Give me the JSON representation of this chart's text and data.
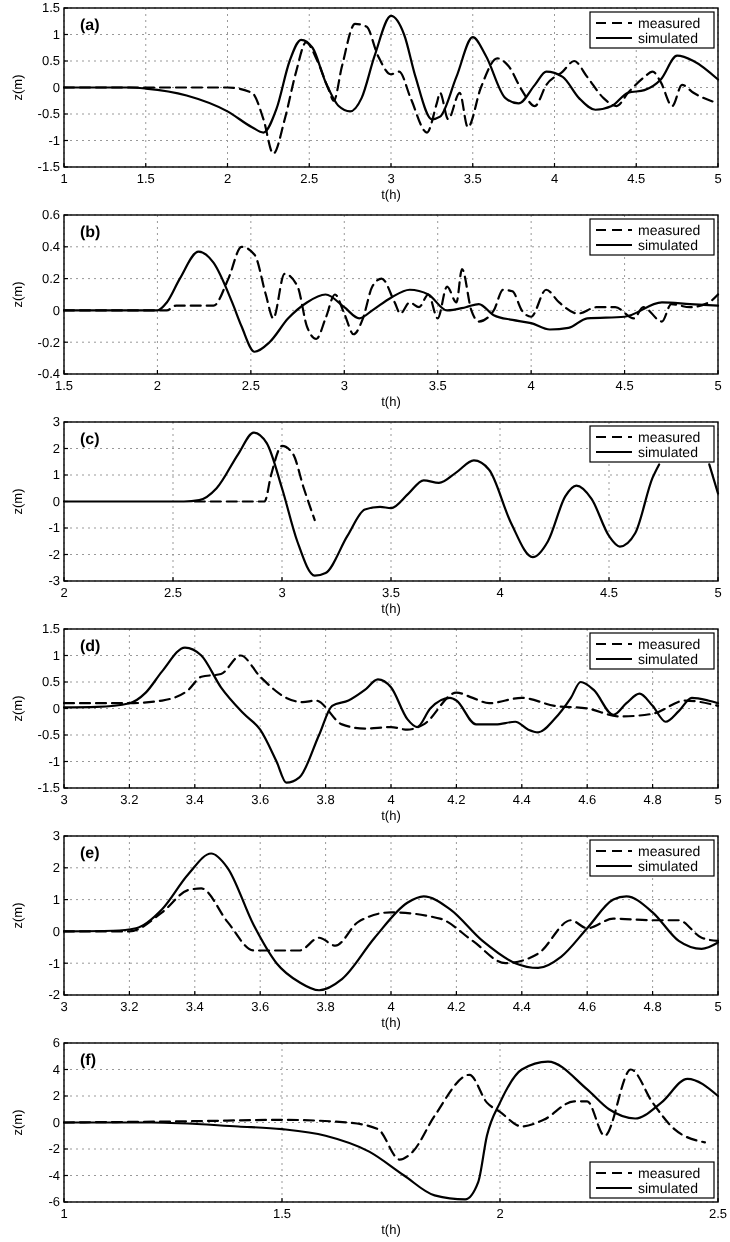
{
  "chart_data": [
    {
      "type": "line",
      "xlabel": "t(h)",
      "ylabel": "z(m)",
      "annotations": [
        "(a)"
      ],
      "xlim": [
        1,
        5
      ],
      "xticks": [
        1,
        1.5,
        2,
        2.5,
        3,
        3.5,
        4,
        4.5,
        5
      ],
      "ylim": [
        -1.5,
        1.5
      ],
      "yticks": [
        -1.5,
        -1,
        -0.5,
        0,
        0.5,
        1,
        1.5
      ],
      "grid": true,
      "legend": "top right",
      "series": [
        {
          "name": "measured",
          "color": "#000000",
          "line_style": "dashed",
          "x": [
            1,
            1.5,
            2,
            2.15,
            2.22,
            2.28,
            2.35,
            2.42,
            2.48,
            2.55,
            2.62,
            2.65,
            2.7,
            2.78,
            2.85,
            2.92,
            3,
            3.05,
            3.12,
            3.22,
            3.28,
            3.3,
            3.35,
            3.42,
            3.47,
            3.55,
            3.65,
            3.72,
            3.8,
            3.88,
            3.95,
            4.05,
            4.12,
            4.2,
            4.3,
            4.38,
            4.45,
            4.55,
            4.6,
            4.65,
            4.72,
            4.78,
            4.85,
            5
          ],
          "values": [
            0,
            0,
            0,
            -0.1,
            -0.6,
            -1.25,
            -0.6,
            0.3,
            0.85,
            0.5,
            -0.05,
            -0.25,
            0.4,
            1.2,
            1.15,
            0.6,
            0.25,
            0.3,
            -0.2,
            -0.85,
            -0.3,
            -0.1,
            -0.6,
            -0.1,
            -0.75,
            0,
            0.55,
            0.4,
            -0.05,
            -0.35,
            0.05,
            0.3,
            0.5,
            0.2,
            -0.2,
            -0.35,
            -0.1,
            0.2,
            0.3,
            0.1,
            -0.35,
            0.05,
            -0.1,
            -0.3
          ]
        },
        {
          "name": "simulated",
          "color": "#000000",
          "line_style": "solid",
          "x": [
            1,
            1.4,
            1.5,
            1.75,
            2,
            2.15,
            2.22,
            2.3,
            2.38,
            2.45,
            2.52,
            2.6,
            2.68,
            2.75,
            2.82,
            2.9,
            3,
            3.08,
            3.15,
            3.25,
            3.3,
            3.4,
            3.5,
            3.58,
            3.7,
            3.78,
            3.88,
            3.95,
            4.05,
            4.15,
            4.25,
            4.35,
            4.45,
            4.55,
            4.65,
            4.75,
            4.85,
            5
          ],
          "values": [
            0,
            0,
            -0.02,
            -0.15,
            -0.45,
            -0.75,
            -0.85,
            -0.4,
            0.5,
            0.9,
            0.75,
            0.1,
            -0.35,
            -0.45,
            -0.2,
            0.6,
            1.35,
            1,
            0.2,
            -0.6,
            -0.55,
            0.2,
            0.95,
            0.6,
            -0.2,
            -0.3,
            0.05,
            0.3,
            0.2,
            -0.2,
            -0.42,
            -0.35,
            -0.1,
            -0.05,
            0.15,
            0.6,
            0.5,
            0.15
          ]
        }
      ]
    },
    {
      "type": "line",
      "xlabel": "t(h)",
      "ylabel": "z(m)",
      "annotations": [
        "(b)"
      ],
      "xlim": [
        1.5,
        5
      ],
      "xticks": [
        1.5,
        2,
        2.5,
        3,
        3.5,
        4,
        4.5,
        5
      ],
      "ylim": [
        -0.4,
        0.6
      ],
      "yticks": [
        -0.4,
        -0.2,
        0,
        0.2,
        0.4,
        0.6
      ],
      "grid": true,
      "legend": "top right",
      "series": [
        {
          "name": "measured",
          "color": "#000000",
          "line_style": "dashed",
          "x": [
            1.5,
            2.05,
            2.1,
            2.3,
            2.38,
            2.45,
            2.52,
            2.58,
            2.62,
            2.68,
            2.75,
            2.8,
            2.85,
            2.9,
            2.95,
            3,
            3.05,
            3.1,
            3.15,
            3.2,
            3.27,
            3.3,
            3.35,
            3.4,
            3.45,
            3.5,
            3.55,
            3.6,
            3.63,
            3.68,
            3.72,
            3.8,
            3.85,
            3.9,
            3.95,
            4,
            4.08,
            4.15,
            4.25,
            4.35,
            4.45,
            4.55,
            4.6,
            4.7,
            4.75,
            4.85,
            4.95,
            5
          ],
          "values": [
            0,
            0,
            0.03,
            0.03,
            0.2,
            0.4,
            0.35,
            0.1,
            -0.05,
            0.23,
            0.15,
            -0.1,
            -0.18,
            -0.05,
            0.1,
            -0.02,
            -0.15,
            -0.05,
            0.15,
            0.2,
            0.05,
            -0.02,
            0.05,
            0.02,
            0.1,
            -0.05,
            0.15,
            0.05,
            0.26,
            0,
            -0.07,
            0,
            0.13,
            0.12,
            0,
            -0.04,
            0.13,
            0.05,
            -0.02,
            0.02,
            0.02,
            -0.05,
            0.02,
            -0.07,
            0.04,
            0.02,
            0.05,
            0.1
          ]
        },
        {
          "name": "simulated",
          "color": "#000000",
          "line_style": "solid",
          "x": [
            1.5,
            2,
            2.05,
            2.12,
            2.22,
            2.3,
            2.4,
            2.45,
            2.52,
            2.6,
            2.7,
            2.8,
            2.9,
            3,
            3.08,
            3.15,
            3.25,
            3.35,
            3.45,
            3.55,
            3.65,
            3.72,
            3.8,
            3.9,
            4,
            4.1,
            4.2,
            4.3,
            4.5,
            4.7,
            4.85,
            5
          ],
          "values": [
            0,
            0,
            0.05,
            0.2,
            0.37,
            0.3,
            0.05,
            -0.1,
            -0.26,
            -0.2,
            -0.05,
            0.05,
            0.1,
            0.02,
            -0.05,
            0,
            0.08,
            0.13,
            0.1,
            0,
            0.02,
            0.04,
            -0.03,
            -0.06,
            -0.08,
            -0.12,
            -0.11,
            -0.05,
            -0.04,
            0.05,
            0.04,
            0.03
          ]
        }
      ]
    },
    {
      "type": "line",
      "xlabel": "t(h)",
      "ylabel": "z(m)",
      "annotations": [
        "(c)"
      ],
      "xlim": [
        2,
        5
      ],
      "xticks": [
        2,
        2.5,
        3,
        3.5,
        4,
        4.5,
        5
      ],
      "ylim": [
        -3,
        3
      ],
      "yticks": [
        -3,
        -2,
        -1,
        0,
        1,
        2,
        3
      ],
      "grid": true,
      "legend": "top right",
      "series": [
        {
          "name": "measured",
          "color": "#000000",
          "line_style": "dashed",
          "x": [
            2.6,
            2.92,
            2.95,
            3,
            3.05,
            3.1,
            3.15
          ],
          "values": [
            0,
            0,
            1,
            2.1,
            1.8,
            0.5,
            -0.7
          ]
        },
        {
          "name": "simulated",
          "color": "#000000",
          "line_style": "solid",
          "x": [
            2,
            2.55,
            2.62,
            2.7,
            2.8,
            2.87,
            2.93,
            3,
            3.07,
            3.15,
            3.2,
            3.3,
            3.38,
            3.45,
            3.5,
            3.58,
            3.65,
            3.72,
            3.8,
            3.88,
            3.95,
            4.05,
            4.15,
            4.22,
            4.3,
            4.35,
            4.42,
            4.5,
            4.55,
            4.62,
            4.7,
            4.73,
            4.85,
            4.96,
            5
          ],
          "values": [
            0,
            0,
            0.05,
            0.5,
            1.8,
            2.6,
            2.2,
            0.5,
            -1.5,
            -2.8,
            -2.7,
            -1.3,
            -0.3,
            -0.2,
            -0.25,
            0.3,
            0.8,
            0.7,
            1.1,
            1.55,
            1.2,
            -0.8,
            -2.1,
            -1.5,
            0.2,
            0.6,
            0.1,
            -1.3,
            -1.7,
            -1.2,
            0.9,
            1.4,
            null,
            1.4,
            0.3
          ]
        }
      ]
    },
    {
      "type": "line",
      "xlabel": "t(h)",
      "ylabel": "z(m)",
      "annotations": [
        "(d)"
      ],
      "xlim": [
        3,
        5
      ],
      "xticks": [
        3,
        3.2,
        3.4,
        3.6,
        3.8,
        4,
        4.2,
        4.4,
        4.6,
        4.8,
        5
      ],
      "ylim": [
        -1.5,
        1.5
      ],
      "yticks": [
        -1.5,
        -1,
        -0.5,
        0,
        0.5,
        1,
        1.5
      ],
      "grid": true,
      "legend": "top right",
      "series": [
        {
          "name": "measured",
          "color": "#000000",
          "line_style": "dashed",
          "x": [
            3,
            3.2,
            3.3,
            3.38,
            3.42,
            3.48,
            3.54,
            3.6,
            3.68,
            3.73,
            3.77,
            3.85,
            3.92,
            4,
            4.05,
            4.1,
            4.2,
            4.25,
            4.3,
            4.4,
            4.5,
            4.6,
            4.7,
            4.8,
            4.9,
            5
          ],
          "values": [
            0.1,
            0.1,
            0.15,
            0.35,
            0.6,
            0.65,
            1,
            0.6,
            0.2,
            0.12,
            0.15,
            -0.3,
            -0.38,
            -0.35,
            -0.4,
            -0.3,
            0.3,
            0.2,
            0.1,
            0.2,
            0.05,
            0,
            -0.15,
            -0.1,
            0.15,
            0.05
          ]
        },
        {
          "name": "simulated",
          "color": "#000000",
          "line_style": "solid",
          "x": [
            3,
            3.1,
            3.2,
            3.25,
            3.3,
            3.37,
            3.42,
            3.48,
            3.55,
            3.6,
            3.65,
            3.68,
            3.72,
            3.78,
            3.82,
            3.87,
            3.92,
            3.96,
            4,
            4.05,
            4.08,
            4.12,
            4.18,
            4.2,
            4.26,
            4.32,
            4.38,
            4.42,
            4.45,
            4.5,
            4.55,
            4.58,
            4.62,
            4.68,
            4.72,
            4.76,
            4.8,
            4.84,
            4.88,
            4.92,
            4.97,
            5
          ],
          "values": [
            0.02,
            0.03,
            0.1,
            0.3,
            0.7,
            1.15,
            1,
            0.4,
            -0.1,
            -0.4,
            -1,
            -1.4,
            -1.3,
            -0.5,
            0.05,
            0.15,
            0.35,
            0.55,
            0.4,
            -0.2,
            -0.35,
            0,
            0.2,
            0.15,
            -0.3,
            -0.3,
            -0.25,
            -0.4,
            -0.45,
            -0.2,
            0.2,
            0.5,
            0.35,
            -0.12,
            0.1,
            0.28,
            0.05,
            -0.25,
            -0.05,
            0.2,
            0.15,
            0.1
          ]
        }
      ]
    },
    {
      "type": "line",
      "xlabel": "t(h)",
      "ylabel": "z(m)",
      "annotations": [
        "(e)"
      ],
      "xlim": [
        3,
        5
      ],
      "xticks": [
        3,
        3.2,
        3.4,
        3.6,
        3.8,
        4,
        4.2,
        4.4,
        4.6,
        4.8,
        5
      ],
      "ylim": [
        -2,
        3
      ],
      "yticks": [
        -2,
        -1,
        0,
        1,
        2,
        3
      ],
      "grid": true,
      "legend": "top right",
      "series": [
        {
          "name": "measured",
          "color": "#000000",
          "line_style": "dashed",
          "x": [
            3,
            3.2,
            3.3,
            3.38,
            3.42,
            3.5,
            3.58,
            3.65,
            3.72,
            3.78,
            3.83,
            3.9,
            4,
            4.15,
            4.25,
            4.35,
            4.45,
            4.55,
            4.6,
            4.68,
            4.8,
            4.88,
            4.95,
            5
          ],
          "values": [
            0,
            0,
            0.6,
            1.3,
            1.35,
            0.3,
            -0.6,
            -0.6,
            -0.6,
            -0.2,
            -0.45,
            0.3,
            0.6,
            0.4,
            -0.3,
            -1,
            -0.7,
            0.35,
            0.1,
            0.4,
            0.35,
            0.35,
            -0.2,
            -0.3
          ]
        },
        {
          "name": "simulated",
          "color": "#000000",
          "line_style": "solid",
          "x": [
            3,
            3.15,
            3.22,
            3.3,
            3.38,
            3.45,
            3.5,
            3.58,
            3.65,
            3.72,
            3.78,
            3.85,
            3.95,
            4.05,
            4.1,
            4.18,
            4.28,
            4.38,
            4.45,
            4.52,
            4.6,
            4.68,
            4.72,
            4.8,
            4.88,
            4.95,
            5
          ],
          "values": [
            0,
            0.02,
            0.1,
            0.7,
            1.8,
            2.45,
            2,
            0.2,
            -1,
            -1.6,
            -1.85,
            -1.5,
            -0.2,
            0.9,
            1.1,
            0.7,
            -0.3,
            -1,
            -1.15,
            -0.8,
            0.1,
            1,
            1.1,
            0.6,
            -0.3,
            -0.55,
            -0.35
          ]
        }
      ]
    },
    {
      "type": "line",
      "xlabel": "t(h)",
      "ylabel": "z(m)",
      "annotations": [
        "(f)"
      ],
      "xlim": [
        1,
        2.5
      ],
      "xticks": [
        1,
        1.5,
        2,
        2.5
      ],
      "ylim": [
        -6,
        6
      ],
      "yticks": [
        -6,
        -4,
        -2,
        0,
        2,
        4,
        6
      ],
      "grid": true,
      "legend": "bottom right",
      "series": [
        {
          "name": "measured",
          "color": "#000000",
          "line_style": "dashed",
          "x": [
            1,
            1.3,
            1.5,
            1.65,
            1.72,
            1.77,
            1.8,
            1.85,
            1.93,
            1.97,
            2,
            2.05,
            2.1,
            2.17,
            2.2,
            2.24,
            2.3,
            2.35,
            2.4,
            2.47
          ],
          "values": [
            0,
            0.1,
            0.2,
            0,
            -0.5,
            -2.8,
            -2.2,
            0.5,
            3.6,
            1.5,
            0.8,
            -0.3,
            0.2,
            1.6,
            1.6,
            -1,
            4,
            1.5,
            -0.5,
            -1.5
          ]
        },
        {
          "name": "simulated",
          "color": "#000000",
          "line_style": "solid",
          "x": [
            1,
            1.2,
            1.4,
            1.5,
            1.6,
            1.7,
            1.78,
            1.85,
            1.92,
            1.95,
            1.97,
            2,
            2.05,
            2.11,
            2.2,
            2.25,
            2.31,
            2.37,
            2.43,
            2.5
          ],
          "values": [
            0,
            0,
            -0.3,
            -0.5,
            -1,
            -2.2,
            -4,
            -5.5,
            -5.8,
            -4.5,
            -1,
            1.5,
            4,
            4.6,
            2.5,
            1,
            0.3,
            1.5,
            3.3,
            2
          ]
        }
      ]
    }
  ]
}
